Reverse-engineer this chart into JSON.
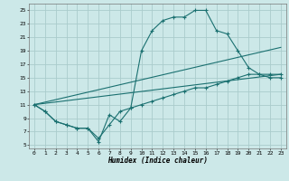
{
  "xlabel": "Humidex (Indice chaleur)",
  "bg_color": "#cce8e8",
  "grid_color": "#aacccc",
  "line_color": "#1a7070",
  "xlim": [
    -0.5,
    23.5
  ],
  "ylim": [
    4.5,
    26
  ],
  "xticks": [
    0,
    1,
    2,
    3,
    4,
    5,
    6,
    7,
    8,
    9,
    10,
    11,
    12,
    13,
    14,
    15,
    16,
    17,
    18,
    19,
    20,
    21,
    22,
    23
  ],
  "yticks": [
    5,
    7,
    9,
    11,
    13,
    15,
    17,
    19,
    21,
    23,
    25
  ],
  "line1_x": [
    0,
    1,
    2,
    3,
    4,
    5,
    6,
    7,
    8,
    9,
    10,
    11,
    12,
    13,
    14,
    15,
    16,
    17,
    18,
    19,
    20,
    21,
    22,
    23
  ],
  "line1_y": [
    11,
    10,
    8.5,
    8,
    7.5,
    7.5,
    6,
    8,
    10,
    10.5,
    19,
    22,
    23.5,
    24,
    24,
    25,
    25,
    22,
    21.5,
    19,
    16.5,
    15.5,
    15,
    15
  ],
  "line2_x": [
    0,
    1,
    2,
    3,
    4,
    5,
    6,
    7,
    8,
    9,
    10,
    11,
    12,
    13,
    14,
    15,
    16,
    17,
    18,
    19,
    20,
    21,
    22,
    23
  ],
  "line2_y": [
    11,
    10,
    8.5,
    8,
    7.5,
    7.5,
    5.5,
    9.5,
    8.5,
    10.5,
    11,
    11.5,
    12,
    12.5,
    13,
    13.5,
    13.5,
    14,
    14.5,
    15,
    15.5,
    15.5,
    15.5,
    15.5
  ],
  "line3_x": [
    0,
    23
  ],
  "line3_y": [
    11,
    15.5
  ],
  "line4_x": [
    0,
    23
  ],
  "line4_y": [
    11,
    19.5
  ]
}
